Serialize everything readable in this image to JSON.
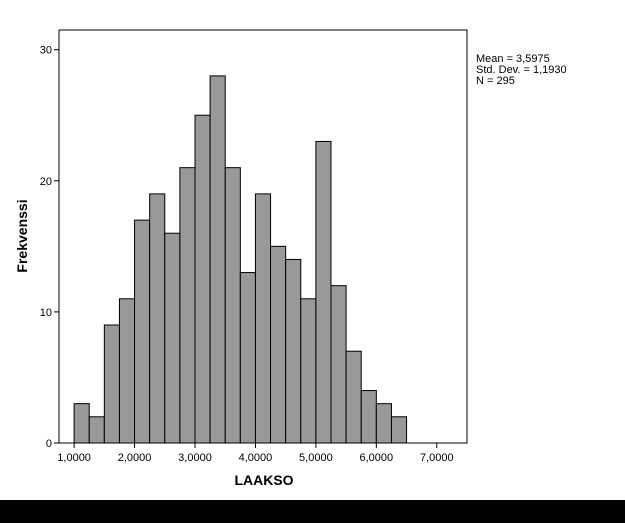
{
  "chart_data": {
    "type": "bar",
    "subtype": "histogram",
    "xlabel": "LAAKSO",
    "ylabel": "Frekvenssi",
    "xlim": [
      0.75,
      7.5
    ],
    "ylim": [
      0,
      31.5
    ],
    "x_ticks": [
      1,
      2,
      3,
      4,
      5,
      6,
      7
    ],
    "x_tick_labels": [
      "1,0000",
      "2,0000",
      "3,0000",
      "4,0000",
      "5,0000",
      "6,0000",
      "7,0000"
    ],
    "y_ticks": [
      0,
      10,
      20,
      30
    ],
    "y_tick_labels": [
      "0",
      "10",
      "20",
      "30"
    ],
    "bins": [
      {
        "start": 1.0,
        "end": 1.25,
        "value": 3
      },
      {
        "start": 1.25,
        "end": 1.5,
        "value": 2
      },
      {
        "start": 1.5,
        "end": 1.75,
        "value": 9
      },
      {
        "start": 1.75,
        "end": 2.0,
        "value": 11
      },
      {
        "start": 2.0,
        "end": 2.25,
        "value": 17
      },
      {
        "start": 2.25,
        "end": 2.5,
        "value": 19
      },
      {
        "start": 2.5,
        "end": 2.75,
        "value": 16
      },
      {
        "start": 2.75,
        "end": 3.0,
        "value": 21
      },
      {
        "start": 3.0,
        "end": 3.25,
        "value": 25
      },
      {
        "start": 3.25,
        "end": 3.5,
        "value": 28
      },
      {
        "start": 3.5,
        "end": 3.75,
        "value": 21
      },
      {
        "start": 3.75,
        "end": 4.0,
        "value": 13
      },
      {
        "start": 4.0,
        "end": 4.25,
        "value": 19
      },
      {
        "start": 4.25,
        "end": 4.5,
        "value": 15
      },
      {
        "start": 4.5,
        "end": 4.75,
        "value": 14
      },
      {
        "start": 4.75,
        "end": 5.0,
        "value": 11
      },
      {
        "start": 5.0,
        "end": 5.25,
        "value": 23
      },
      {
        "start": 5.25,
        "end": 5.5,
        "value": 12
      },
      {
        "start": 5.5,
        "end": 5.75,
        "value": 7
      },
      {
        "start": 5.75,
        "end": 6.0,
        "value": 4
      },
      {
        "start": 6.0,
        "end": 6.25,
        "value": 3
      },
      {
        "start": 6.25,
        "end": 6.5,
        "value": 2
      }
    ],
    "stats": {
      "mean_line": "Mean = 3,5975",
      "std_line": "Std. Dev. = 1,1930",
      "n_line": "N = 295"
    },
    "grid": false,
    "colors": {
      "bar_fill": "#999999",
      "bar_stroke": "#000000"
    }
  }
}
